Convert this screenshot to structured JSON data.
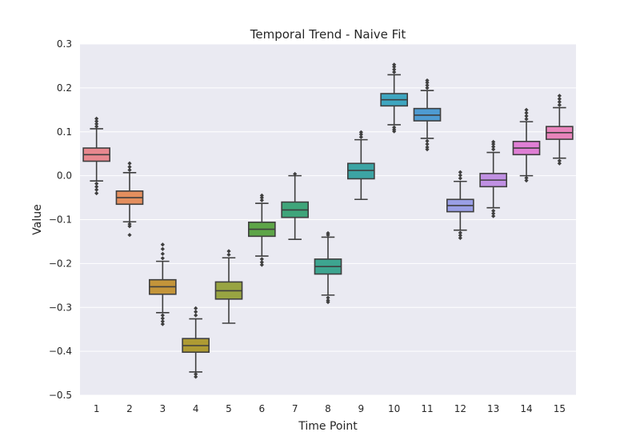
{
  "chart_data": {
    "type": "box",
    "title": "Temporal Trend - Naive Fit",
    "xlabel": "Time Point",
    "ylabel": "Value",
    "ylim": [
      -0.5,
      0.3
    ],
    "yticks": [
      -0.5,
      -0.4,
      -0.3,
      -0.2,
      -0.1,
      0.0,
      0.1,
      0.2,
      0.3
    ],
    "ytick_labels": [
      "−0.5",
      "−0.4",
      "−0.3",
      "−0.2",
      "−0.1",
      "0.0",
      "0.1",
      "0.2",
      "0.3"
    ],
    "grid": true,
    "background_color": "#EAEAF2",
    "categories": [
      "1",
      "2",
      "3",
      "4",
      "5",
      "6",
      "7",
      "8",
      "9",
      "10",
      "11",
      "12",
      "13",
      "14",
      "15"
    ],
    "boxes": [
      {
        "category": "1",
        "q1": 0.033,
        "median": 0.048,
        "q3": 0.063,
        "whisker_low": -0.012,
        "whisker_high": 0.107,
        "outliers_low": [
          -0.018,
          -0.025,
          -0.032,
          -0.04
        ],
        "outliers_high": [
          0.112,
          0.118,
          0.124,
          0.13
        ],
        "color": "#E8888F"
      },
      {
        "category": "2",
        "q1": -0.065,
        "median": -0.05,
        "q3": -0.035,
        "whisker_low": -0.105,
        "whisker_high": 0.007,
        "outliers_low": [
          -0.11,
          -0.115,
          -0.135
        ],
        "outliers_high": [
          0.013,
          0.02,
          0.028
        ],
        "color": "#E48F5E"
      },
      {
        "category": "3",
        "q1": -0.27,
        "median": -0.253,
        "q3": -0.237,
        "whisker_low": -0.312,
        "whisker_high": -0.195,
        "outliers_low": [
          -0.318,
          -0.325,
          -0.332,
          -0.338
        ],
        "outliers_high": [
          -0.188,
          -0.178,
          -0.167,
          -0.157
        ],
        "color": "#C4953A"
      },
      {
        "category": "4",
        "q1": -0.402,
        "median": -0.387,
        "q3": -0.371,
        "whisker_low": -0.447,
        "whisker_high": -0.326,
        "outliers_low": [
          -0.452,
          -0.458
        ],
        "outliers_high": [
          -0.318,
          -0.31,
          -0.302
        ],
        "color": "#AE9B33"
      },
      {
        "category": "5",
        "q1": -0.281,
        "median": -0.262,
        "q3": -0.242,
        "whisker_low": -0.336,
        "whisker_high": -0.187,
        "outliers_low": [],
        "outliers_high": [
          -0.18,
          -0.172
        ],
        "color": "#98A442"
      },
      {
        "category": "6",
        "q1": -0.138,
        "median": -0.122,
        "q3": -0.106,
        "whisker_low": -0.183,
        "whisker_high": -0.063,
        "outliers_low": [
          -0.19,
          -0.197,
          -0.203
        ],
        "outliers_high": [
          -0.056,
          -0.05,
          -0.045
        ],
        "color": "#5DA548"
      },
      {
        "category": "7",
        "q1": -0.095,
        "median": -0.078,
        "q3": -0.06,
        "whisker_low": -0.145,
        "whisker_high": 0.0,
        "outliers_low": [],
        "outliers_high": [
          0.004
        ],
        "color": "#3FA57A"
      },
      {
        "category": "8",
        "q1": -0.224,
        "median": -0.207,
        "q3": -0.19,
        "whisker_low": -0.272,
        "whisker_high": -0.14,
        "outliers_low": [
          -0.278,
          -0.284,
          -0.288
        ],
        "outliers_high": [
          -0.135,
          -0.131
        ],
        "color": "#3DA590"
      },
      {
        "category": "9",
        "q1": -0.007,
        "median": 0.012,
        "q3": 0.028,
        "whisker_low": -0.054,
        "whisker_high": 0.082,
        "outliers_low": [],
        "outliers_high": [
          0.088,
          0.094,
          0.099
        ],
        "color": "#3CA4A4"
      },
      {
        "category": "10",
        "q1": 0.159,
        "median": 0.173,
        "q3": 0.187,
        "whisker_low": 0.116,
        "whisker_high": 0.23,
        "outliers_low": [
          0.11,
          0.105,
          0.101
        ],
        "outliers_high": [
          0.236,
          0.242,
          0.248,
          0.253
        ],
        "color": "#3EA6C0"
      },
      {
        "category": "11",
        "q1": 0.125,
        "median": 0.138,
        "q3": 0.153,
        "whisker_low": 0.085,
        "whisker_high": 0.194,
        "outliers_low": [
          0.079,
          0.072,
          0.065,
          0.06
        ],
        "outliers_high": [
          0.2,
          0.206,
          0.212,
          0.217
        ],
        "color": "#4E9BD2"
      },
      {
        "category": "12",
        "q1": -0.082,
        "median": -0.068,
        "q3": -0.054,
        "whisker_low": -0.124,
        "whisker_high": -0.013,
        "outliers_low": [
          -0.13,
          -0.136,
          -0.142
        ],
        "outliers_high": [
          -0.006,
          0.001,
          0.008
        ],
        "color": "#9A9FE6"
      },
      {
        "category": "13",
        "q1": -0.025,
        "median": -0.01,
        "q3": 0.005,
        "whisker_low": -0.073,
        "whisker_high": 0.053,
        "outliers_low": [
          -0.08,
          -0.086,
          -0.092
        ],
        "outliers_high": [
          0.06,
          0.066,
          0.072,
          0.077
        ],
        "color": "#C090E3"
      },
      {
        "category": "14",
        "q1": 0.048,
        "median": 0.063,
        "q3": 0.078,
        "whisker_low": 0.0,
        "whisker_high": 0.123,
        "outliers_low": [
          -0.005,
          -0.011
        ],
        "outliers_high": [
          0.129,
          0.136,
          0.143,
          0.15
        ],
        "color": "#E07FD5"
      },
      {
        "category": "15",
        "q1": 0.083,
        "median": 0.098,
        "q3": 0.112,
        "whisker_low": 0.04,
        "whisker_high": 0.155,
        "outliers_low": [
          0.034,
          0.028
        ],
        "outliers_high": [
          0.161,
          0.168,
          0.175,
          0.182
        ],
        "color": "#E884BB"
      }
    ]
  }
}
